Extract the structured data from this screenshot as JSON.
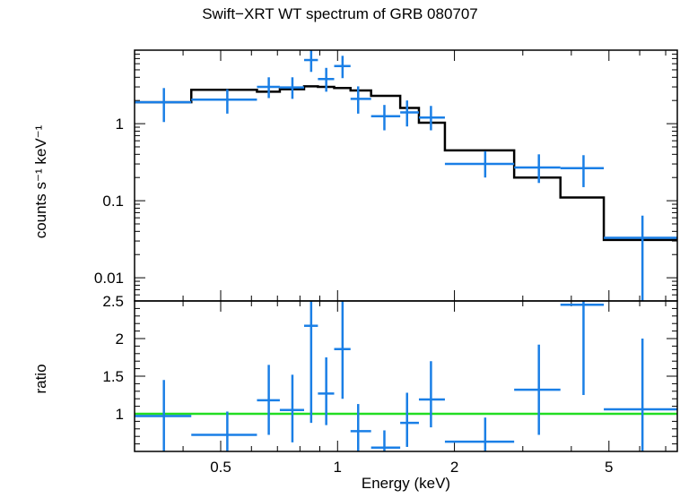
{
  "title": "Swift−XRT WT spectrum of GRB 080707",
  "colors": {
    "data": "#1a7fe6",
    "model": "#000000",
    "ratio_line": "#22dd22"
  },
  "chart_data": [
    {
      "type": "scatter",
      "panel": "spectrum",
      "ylabel": "counts s⁻¹ keV⁻¹",
      "xscale": "log",
      "yscale": "log",
      "xlim": [
        0.3,
        7.5
      ],
      "ylim": [
        0.005,
        9
      ],
      "yticks": [
        {
          "value": 0.01,
          "label": "0.01"
        },
        {
          "value": 0.1,
          "label": "0.1"
        },
        {
          "value": 1,
          "label": "1"
        }
      ],
      "series": [
        {
          "kind": "data",
          "points": [
            {
              "x": 0.357,
              "xlo": 0.3,
              "xhi": 0.42,
              "y": 1.9,
              "ylo": 1.05,
              "yhi": 2.9
            },
            {
              "x": 0.52,
              "xlo": 0.42,
              "xhi": 0.62,
              "y": 2.05,
              "ylo": 1.35,
              "yhi": 2.8
            },
            {
              "x": 0.665,
              "xlo": 0.62,
              "xhi": 0.71,
              "y": 3.0,
              "ylo": 2.15,
              "yhi": 4.0
            },
            {
              "x": 0.765,
              "xlo": 0.71,
              "xhi": 0.82,
              "y": 2.95,
              "ylo": 2.1,
              "yhi": 4.0
            },
            {
              "x": 0.855,
              "xlo": 0.82,
              "xhi": 0.89,
              "y": 6.7,
              "ylo": 4.7,
              "yhi": 8.9
            },
            {
              "x": 0.935,
              "xlo": 0.89,
              "xhi": 0.98,
              "y": 3.8,
              "ylo": 2.6,
              "yhi": 5.3
            },
            {
              "x": 1.03,
              "xlo": 0.98,
              "xhi": 1.08,
              "y": 5.6,
              "ylo": 3.9,
              "yhi": 7.6
            },
            {
              "x": 1.13,
              "xlo": 1.08,
              "xhi": 1.22,
              "y": 2.1,
              "ylo": 1.35,
              "yhi": 3.05
            },
            {
              "x": 1.32,
              "xlo": 1.22,
              "xhi": 1.45,
              "y": 1.25,
              "ylo": 0.82,
              "yhi": 1.75
            },
            {
              "x": 1.51,
              "xlo": 1.45,
              "xhi": 1.62,
              "y": 1.4,
              "ylo": 0.92,
              "yhi": 2.0
            },
            {
              "x": 1.74,
              "xlo": 1.62,
              "xhi": 1.89,
              "y": 1.2,
              "ylo": 0.82,
              "yhi": 1.7
            },
            {
              "x": 2.4,
              "xlo": 1.89,
              "xhi": 2.85,
              "y": 0.3,
              "ylo": 0.2,
              "yhi": 0.44
            },
            {
              "x": 3.3,
              "xlo": 2.85,
              "xhi": 3.75,
              "y": 0.27,
              "ylo": 0.17,
              "yhi": 0.4
            },
            {
              "x": 4.3,
              "xlo": 3.75,
              "xhi": 4.85,
              "y": 0.265,
              "ylo": 0.15,
              "yhi": 0.39
            },
            {
              "x": 6.1,
              "xlo": 4.85,
              "xhi": 7.5,
              "y": 0.033,
              "ylo": 0.004,
              "yhi": 0.064
            }
          ]
        },
        {
          "kind": "model",
          "steps": [
            {
              "x0": 0.3,
              "x1": 0.42,
              "y": 1.9
            },
            {
              "x0": 0.42,
              "x1": 0.62,
              "y": 2.75
            },
            {
              "x0": 0.62,
              "x1": 0.71,
              "y": 2.6
            },
            {
              "x0": 0.71,
              "x1": 0.82,
              "y": 2.8
            },
            {
              "x0": 0.82,
              "x1": 0.89,
              "y": 3.05
            },
            {
              "x0": 0.89,
              "x1": 0.98,
              "y": 3.0
            },
            {
              "x0": 0.98,
              "x1": 1.08,
              "y": 2.9
            },
            {
              "x0": 1.08,
              "x1": 1.22,
              "y": 2.7
            },
            {
              "x0": 1.22,
              "x1": 1.45,
              "y": 2.3
            },
            {
              "x0": 1.45,
              "x1": 1.62,
              "y": 1.6
            },
            {
              "x0": 1.62,
              "x1": 1.89,
              "y": 1.03
            },
            {
              "x0": 1.89,
              "x1": 2.85,
              "y": 0.45
            },
            {
              "x0": 2.85,
              "x1": 3.75,
              "y": 0.2
            },
            {
              "x0": 3.75,
              "x1": 4.85,
              "y": 0.11
            },
            {
              "x0": 4.85,
              "x1": 7.5,
              "y": 0.031
            }
          ]
        }
      ]
    },
    {
      "type": "scatter",
      "panel": "ratio",
      "xlabel": "Energy (keV)",
      "ylabel": "ratio",
      "xscale": "log",
      "xlim": [
        0.3,
        7.5
      ],
      "ylim": [
        0.5,
        2.5
      ],
      "xticks": [
        {
          "value": 0.5,
          "label": "0.5"
        },
        {
          "value": 1,
          "label": "1"
        },
        {
          "value": 2,
          "label": "2"
        },
        {
          "value": 5,
          "label": "5"
        }
      ],
      "yticks": [
        {
          "value": 1,
          "label": "1"
        },
        {
          "value": 1.5,
          "label": "1.5"
        },
        {
          "value": 2,
          "label": "2"
        },
        {
          "value": 2.5,
          "label": "2.5"
        }
      ],
      "reference_line": 1,
      "points": [
        {
          "x": 0.357,
          "xlo": 0.3,
          "xhi": 0.42,
          "y": 0.97,
          "ylo": 0.45,
          "yhi": 1.45
        },
        {
          "x": 0.52,
          "xlo": 0.42,
          "xhi": 0.62,
          "y": 0.72,
          "ylo": 0.45,
          "yhi": 1.03
        },
        {
          "x": 0.665,
          "xlo": 0.62,
          "xhi": 0.71,
          "y": 1.18,
          "ylo": 0.72,
          "yhi": 1.65
        },
        {
          "x": 0.765,
          "xlo": 0.71,
          "xhi": 0.82,
          "y": 1.05,
          "ylo": 0.62,
          "yhi": 1.52
        },
        {
          "x": 0.855,
          "xlo": 0.82,
          "xhi": 0.89,
          "y": 2.17,
          "ylo": 0.88,
          "yhi": 2.65
        },
        {
          "x": 0.935,
          "xlo": 0.89,
          "xhi": 0.98,
          "y": 1.27,
          "ylo": 0.85,
          "yhi": 1.75
        },
        {
          "x": 1.03,
          "xlo": 0.98,
          "xhi": 1.08,
          "y": 1.86,
          "ylo": 1.2,
          "yhi": 2.55
        },
        {
          "x": 1.13,
          "xlo": 1.08,
          "xhi": 1.22,
          "y": 0.77,
          "ylo": 0.48,
          "yhi": 1.13
        },
        {
          "x": 1.32,
          "xlo": 1.22,
          "xhi": 1.45,
          "y": 0.55,
          "ylo": 0.45,
          "yhi": 0.78
        },
        {
          "x": 1.51,
          "xlo": 1.45,
          "xhi": 1.62,
          "y": 0.88,
          "ylo": 0.56,
          "yhi": 1.28
        },
        {
          "x": 1.74,
          "xlo": 1.62,
          "xhi": 1.89,
          "y": 1.19,
          "ylo": 0.82,
          "yhi": 1.7
        },
        {
          "x": 2.4,
          "xlo": 1.89,
          "xhi": 2.85,
          "y": 0.63,
          "ylo": 0.45,
          "yhi": 0.95
        },
        {
          "x": 3.3,
          "xlo": 2.85,
          "xhi": 3.75,
          "y": 1.32,
          "ylo": 0.72,
          "yhi": 1.92
        },
        {
          "x": 4.3,
          "xlo": 3.75,
          "xhi": 4.85,
          "y": 2.45,
          "ylo": 1.25,
          "yhi": 2.65
        },
        {
          "x": 6.1,
          "xlo": 4.85,
          "xhi": 7.5,
          "y": 1.06,
          "ylo": 0.45,
          "yhi": 2.0
        }
      ]
    }
  ]
}
